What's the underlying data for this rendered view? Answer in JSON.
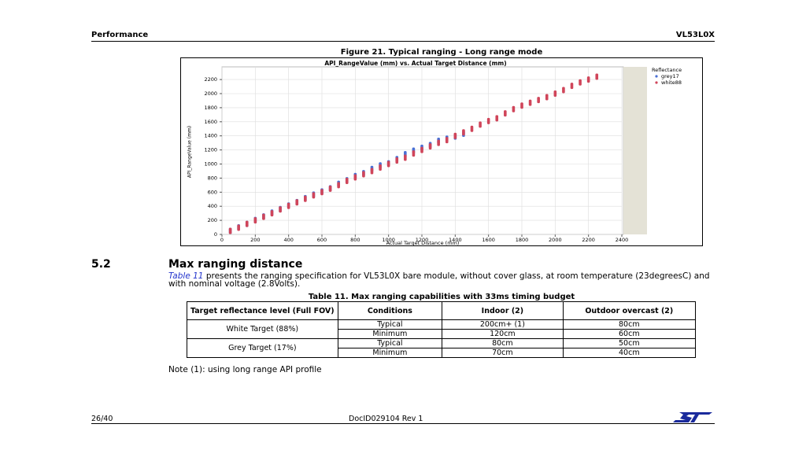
{
  "header": {
    "left": "Performance",
    "right": "VL53L0X"
  },
  "figure_caption": "Figure 21. Typical ranging - Long range mode",
  "chart_data": {
    "type": "scatter",
    "title": "API_RangeValue (mm) vs. Actual Target Distance (mm)",
    "x_label": "Actual Target Distance (mm)",
    "y_label": "API_RangeValue (mm)",
    "legend_title": "Reflectance",
    "xlim": [
      0,
      2400
    ],
    "ylim": [
      0,
      2380
    ],
    "xticks": [
      0,
      200,
      400,
      600,
      800,
      1000,
      1200,
      1400,
      1600,
      1800,
      2000,
      2200,
      2400
    ],
    "yticks": [
      0,
      200,
      400,
      600,
      800,
      1000,
      1200,
      1400,
      1600,
      1800,
      2000,
      2200
    ],
    "grid": true,
    "series": [
      {
        "name": "grey17",
        "color": "#4a6fd4",
        "x": [
          50,
          100,
          150,
          200,
          250,
          300,
          350,
          400,
          450,
          500,
          550,
          600,
          650,
          700,
          750,
          800,
          850,
          900,
          950,
          1000,
          1050,
          1100,
          1150,
          1200,
          1250,
          1300,
          1350,
          1400,
          1450
        ],
        "values": [
          50,
          100,
          150,
          205,
          255,
          310,
          360,
          410,
          460,
          515,
          565,
          610,
          655,
          720,
          770,
          830,
          870,
          930,
          980,
          1010,
          1070,
          1140,
          1190,
          1230,
          1270,
          1330,
          1360,
          1390,
          1430
        ]
      },
      {
        "name": "white88",
        "color": "#d0455a",
        "x": [
          50,
          100,
          150,
          200,
          250,
          300,
          350,
          400,
          450,
          500,
          550,
          600,
          650,
          700,
          750,
          800,
          850,
          900,
          950,
          1000,
          1050,
          1100,
          1150,
          1200,
          1250,
          1300,
          1350,
          1400,
          1450,
          1500,
          1550,
          1600,
          1650,
          1700,
          1750,
          1800,
          1850,
          1900,
          1950,
          2000,
          2050,
          2100,
          2150,
          2200,
          2250
        ],
        "values": [
          50,
          95,
          150,
          200,
          250,
          300,
          355,
          405,
          455,
          505,
          555,
          600,
          650,
          700,
          760,
          810,
          855,
          900,
          950,
          1000,
          1050,
          1090,
          1150,
          1200,
          1250,
          1300,
          1340,
          1400,
          1450,
          1500,
          1560,
          1610,
          1650,
          1720,
          1780,
          1830,
          1870,
          1910,
          1950,
          2000,
          2050,
          2110,
          2160,
          2200,
          2240
        ]
      }
    ]
  },
  "section": {
    "number": "5.2",
    "title": "Max ranging distance",
    "link": "Table 11",
    "text": "presents the ranging specification for VL53L0X bare module, without cover glass, at room temperature (23degreesC) and with nominal voltage (2.8Volts)."
  },
  "table": {
    "caption": "Table 11. Max ranging capabilities with 33ms timing budget",
    "headers": [
      "Target reflectance level (Full FOV)",
      "Conditions",
      "Indoor (2)",
      "Outdoor overcast (2)"
    ],
    "groups": [
      {
        "target": "White Target (88%)",
        "rows": [
          [
            "Typical",
            "200cm+ (1)",
            "80cm"
          ],
          [
            "Minimum",
            "120cm",
            "60cm"
          ]
        ]
      },
      {
        "target": "Grey Target (17%)",
        "rows": [
          [
            "Typical",
            "80cm",
            "50cm"
          ],
          [
            "Minimum",
            "70cm",
            "40cm"
          ]
        ]
      }
    ]
  },
  "note": "Note (1): using long range API profile",
  "footer": {
    "page": "26/40",
    "doc": "DocID029104 Rev 1"
  }
}
